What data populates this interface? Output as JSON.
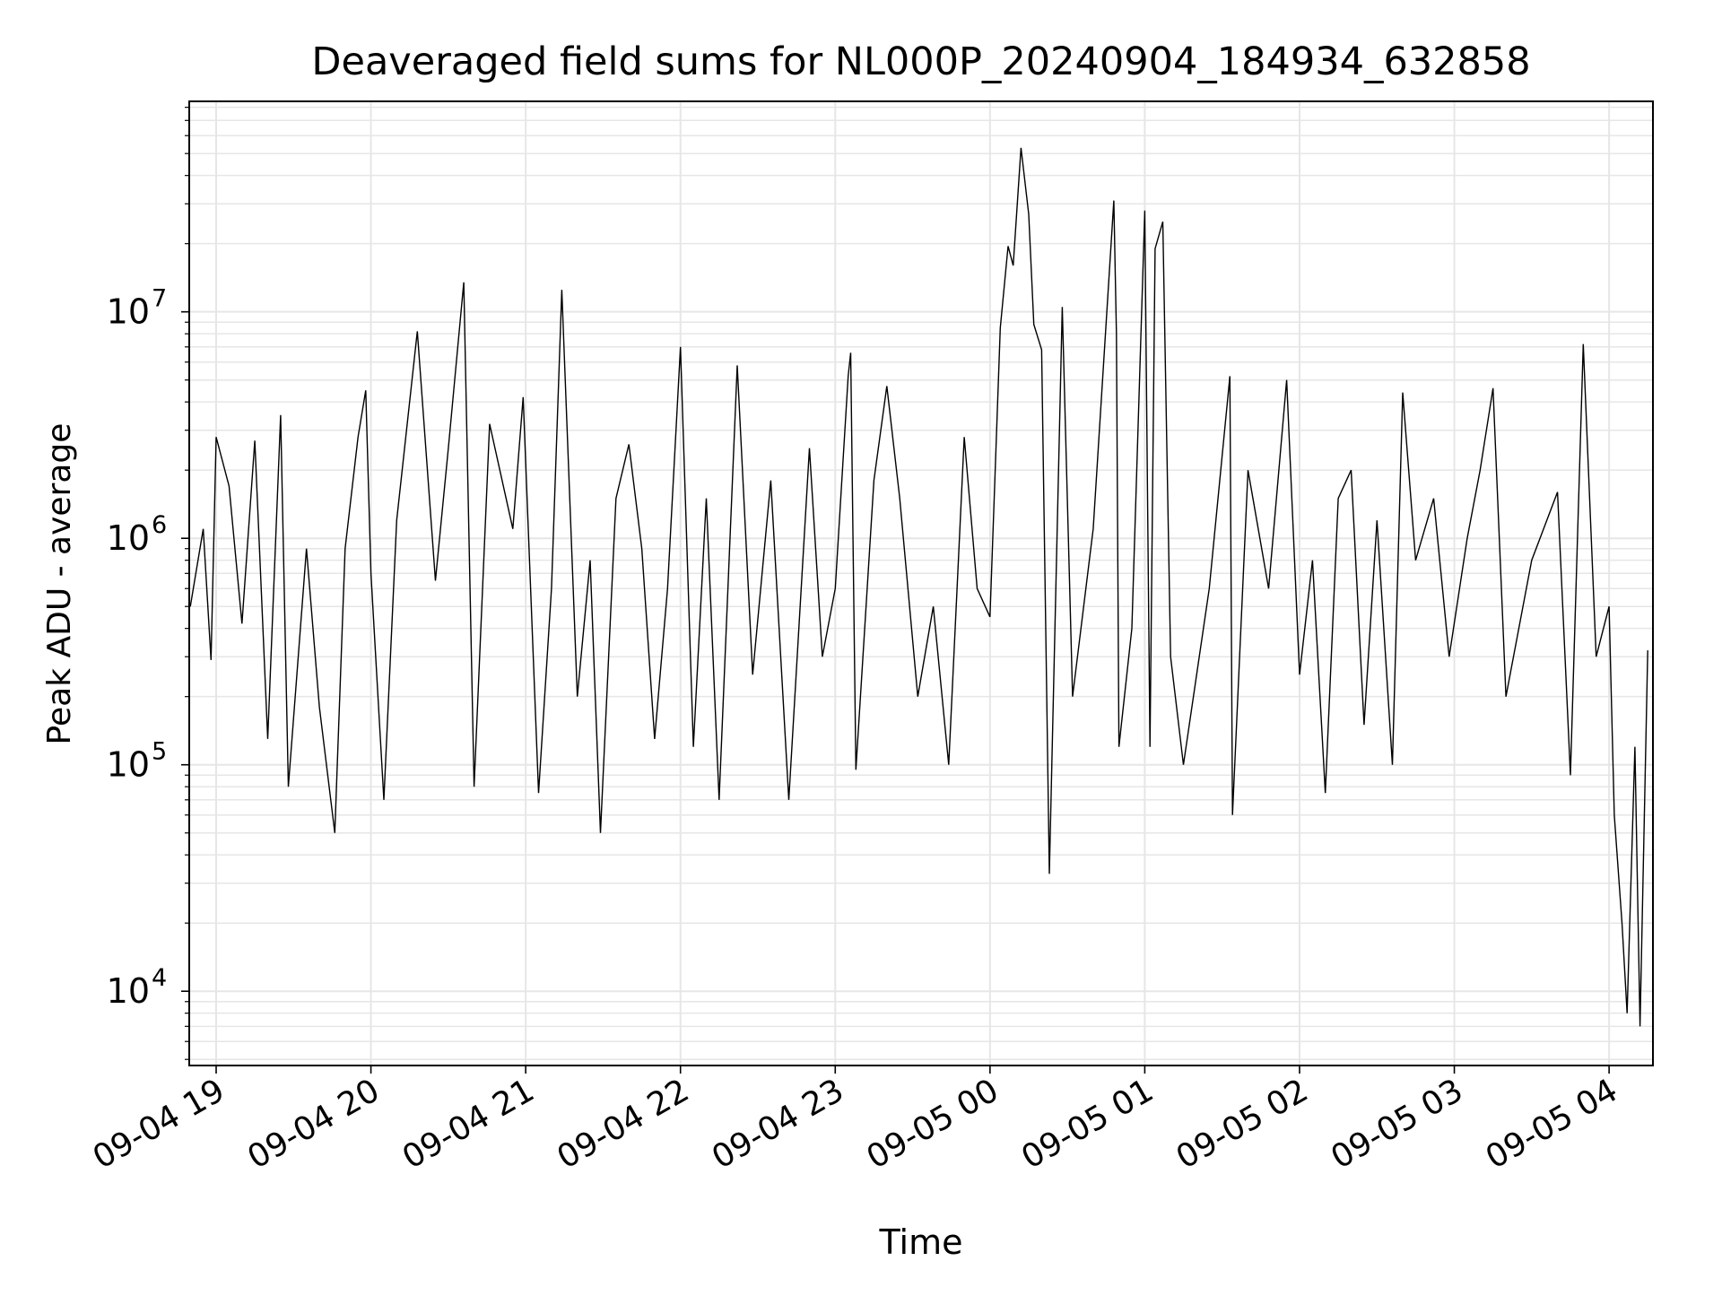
{
  "chart_data": {
    "type": "line",
    "title": "Deaveraged field sums for NL000P_20240904_184934_632858",
    "xlabel": "Time",
    "ylabel": "Peak ADU - average",
    "yscale": "log",
    "xlim": [
      "2024-09-04 18:49:34",
      "2024-09-05 04:17:00"
    ],
    "ylim": [
      4700,
      85000000
    ],
    "grid": true,
    "line_color": "#000000",
    "grid_color": "#e6e6e6",
    "x_ticks": [
      {
        "value": "2024-09-04 19:00",
        "label": "09-04 19"
      },
      {
        "value": "2024-09-04 20:00",
        "label": "09-04 20"
      },
      {
        "value": "2024-09-04 21:00",
        "label": "09-04 21"
      },
      {
        "value": "2024-09-04 22:00",
        "label": "09-04 22"
      },
      {
        "value": "2024-09-04 23:00",
        "label": "09-04 23"
      },
      {
        "value": "2024-09-05 00:00",
        "label": "09-05 00"
      },
      {
        "value": "2024-09-05 01:00",
        "label": "09-05 01"
      },
      {
        "value": "2024-09-05 02:00",
        "label": "09-05 02"
      },
      {
        "value": "2024-09-05 03:00",
        "label": "09-05 03"
      },
      {
        "value": "2024-09-05 04:00",
        "label": "09-05 04"
      }
    ],
    "y_ticks": [
      {
        "value": 10000,
        "base": "10",
        "exp": "4"
      },
      {
        "value": 100000,
        "base": "10",
        "exp": "5"
      },
      {
        "value": 1000000,
        "base": "10",
        "exp": "6"
      },
      {
        "value": 10000000,
        "base": "10",
        "exp": "7"
      }
    ],
    "series": [
      {
        "values": [
          [
            "2024-09-04 18:50",
            500000
          ],
          [
            "2024-09-04 18:55",
            1100000
          ],
          [
            "2024-09-04 18:58",
            290000
          ],
          [
            "2024-09-04 19:00",
            2800000
          ],
          [
            "2024-09-04 19:05",
            1700000
          ],
          [
            "2024-09-04 19:10",
            420000
          ],
          [
            "2024-09-04 19:15",
            2700000
          ],
          [
            "2024-09-04 19:20",
            130000
          ],
          [
            "2024-09-04 19:25",
            3500000
          ],
          [
            "2024-09-04 19:28",
            80000
          ],
          [
            "2024-09-04 19:35",
            900000
          ],
          [
            "2024-09-04 19:40",
            180000
          ],
          [
            "2024-09-04 19:46",
            50000
          ],
          [
            "2024-09-04 19:50",
            900000
          ],
          [
            "2024-09-04 19:55",
            2800000
          ],
          [
            "2024-09-04 19:58",
            4500000
          ],
          [
            "2024-09-04 20:00",
            700000
          ],
          [
            "2024-09-04 20:05",
            70000
          ],
          [
            "2024-09-04 20:10",
            1200000
          ],
          [
            "2024-09-04 20:18",
            8200000
          ],
          [
            "2024-09-04 20:25",
            650000
          ],
          [
            "2024-09-04 20:30",
            2500000
          ],
          [
            "2024-09-04 20:36",
            13500000
          ],
          [
            "2024-09-04 20:40",
            80000
          ],
          [
            "2024-09-04 20:46",
            3200000
          ],
          [
            "2024-09-04 20:55",
            1100000
          ],
          [
            "2024-09-04 20:59",
            4200000
          ],
          [
            "2024-09-04 21:05",
            75000
          ],
          [
            "2024-09-04 21:10",
            600000
          ],
          [
            "2024-09-04 21:14",
            12500000
          ],
          [
            "2024-09-04 21:20",
            200000
          ],
          [
            "2024-09-04 21:25",
            800000
          ],
          [
            "2024-09-04 21:29",
            50000
          ],
          [
            "2024-09-04 21:35",
            1500000
          ],
          [
            "2024-09-04 21:40",
            2600000
          ],
          [
            "2024-09-04 21:45",
            900000
          ],
          [
            "2024-09-04 21:50",
            130000
          ],
          [
            "2024-09-04 21:55",
            600000
          ],
          [
            "2024-09-04 22:00",
            7000000
          ],
          [
            "2024-09-04 22:05",
            120000
          ],
          [
            "2024-09-04 22:10",
            1500000
          ],
          [
            "2024-09-04 22:15",
            70000
          ],
          [
            "2024-09-04 22:22",
            5800000
          ],
          [
            "2024-09-04 22:28",
            250000
          ],
          [
            "2024-09-04 22:35",
            1800000
          ],
          [
            "2024-09-04 22:42",
            70000
          ],
          [
            "2024-09-04 22:50",
            2500000
          ],
          [
            "2024-09-04 22:55",
            300000
          ],
          [
            "2024-09-04 23:00",
            600000
          ],
          [
            "2024-09-04 23:05",
            5200000
          ],
          [
            "2024-09-04 23:06",
            6600000
          ],
          [
            "2024-09-04 23:08",
            95000
          ],
          [
            "2024-09-04 23:15",
            1800000
          ],
          [
            "2024-09-04 23:20",
            4700000
          ],
          [
            "2024-09-04 23:25",
            1500000
          ],
          [
            "2024-09-04 23:32",
            200000
          ],
          [
            "2024-09-04 23:38",
            500000
          ],
          [
            "2024-09-04 23:44",
            100000
          ],
          [
            "2024-09-04 23:50",
            2800000
          ],
          [
            "2024-09-04 23:55",
            600000
          ],
          [
            "2024-09-05 00:00",
            450000
          ],
          [
            "2024-09-05 00:04",
            8500000
          ],
          [
            "2024-09-05 00:07",
            19500000
          ],
          [
            "2024-09-05 00:09",
            16000000
          ],
          [
            "2024-09-05 00:12",
            53000000
          ],
          [
            "2024-09-05 00:15",
            27000000
          ],
          [
            "2024-09-05 00:17",
            8800000
          ],
          [
            "2024-09-05 00:20",
            6800000
          ],
          [
            "2024-09-05 00:23",
            33000
          ],
          [
            "2024-09-05 00:28",
            10500000
          ],
          [
            "2024-09-05 00:32",
            200000
          ],
          [
            "2024-09-05 00:40",
            1100000
          ],
          [
            "2024-09-05 00:48",
            31000000
          ],
          [
            "2024-09-05 00:49",
            8000000
          ],
          [
            "2024-09-05 00:50",
            120000
          ],
          [
            "2024-09-05 00:55",
            400000
          ],
          [
            "2024-09-05 01:00",
            28000000
          ],
          [
            "2024-09-05 01:02",
            120000
          ],
          [
            "2024-09-05 01:04",
            19000000
          ],
          [
            "2024-09-05 01:07",
            25000000
          ],
          [
            "2024-09-05 01:10",
            300000
          ],
          [
            "2024-09-05 01:15",
            100000
          ],
          [
            "2024-09-05 01:25",
            600000
          ],
          [
            "2024-09-05 01:33",
            5200000
          ],
          [
            "2024-09-05 01:34",
            60000
          ],
          [
            "2024-09-05 01:40",
            2000000
          ],
          [
            "2024-09-05 01:48",
            600000
          ],
          [
            "2024-09-05 01:55",
            5000000
          ],
          [
            "2024-09-05 02:00",
            250000
          ],
          [
            "2024-09-05 02:05",
            800000
          ],
          [
            "2024-09-05 02:10",
            75000
          ],
          [
            "2024-09-05 02:15",
            1500000
          ],
          [
            "2024-09-05 02:20",
            2000000
          ],
          [
            "2024-09-05 02:25",
            150000
          ],
          [
            "2024-09-05 02:30",
            1200000
          ],
          [
            "2024-09-05 02:36",
            100000
          ],
          [
            "2024-09-05 02:40",
            4400000
          ],
          [
            "2024-09-05 02:45",
            800000
          ],
          [
            "2024-09-05 02:52",
            1500000
          ],
          [
            "2024-09-05 02:58",
            300000
          ],
          [
            "2024-09-05 03:05",
            1000000
          ],
          [
            "2024-09-05 03:10",
            2000000
          ],
          [
            "2024-09-05 03:15",
            4600000
          ],
          [
            "2024-09-05 03:20",
            200000
          ],
          [
            "2024-09-05 03:30",
            800000
          ],
          [
            "2024-09-05 03:40",
            1600000
          ],
          [
            "2024-09-05 03:45",
            90000
          ],
          [
            "2024-09-05 03:50",
            7200000
          ],
          [
            "2024-09-05 03:55",
            300000
          ],
          [
            "2024-09-05 04:00",
            500000
          ],
          [
            "2024-09-05 04:02",
            60000
          ],
          [
            "2024-09-05 04:05",
            20000
          ],
          [
            "2024-09-05 04:07",
            8000
          ],
          [
            "2024-09-05 04:10",
            120000
          ],
          [
            "2024-09-05 04:12",
            7000
          ],
          [
            "2024-09-05 04:15",
            320000
          ]
        ]
      }
    ]
  }
}
